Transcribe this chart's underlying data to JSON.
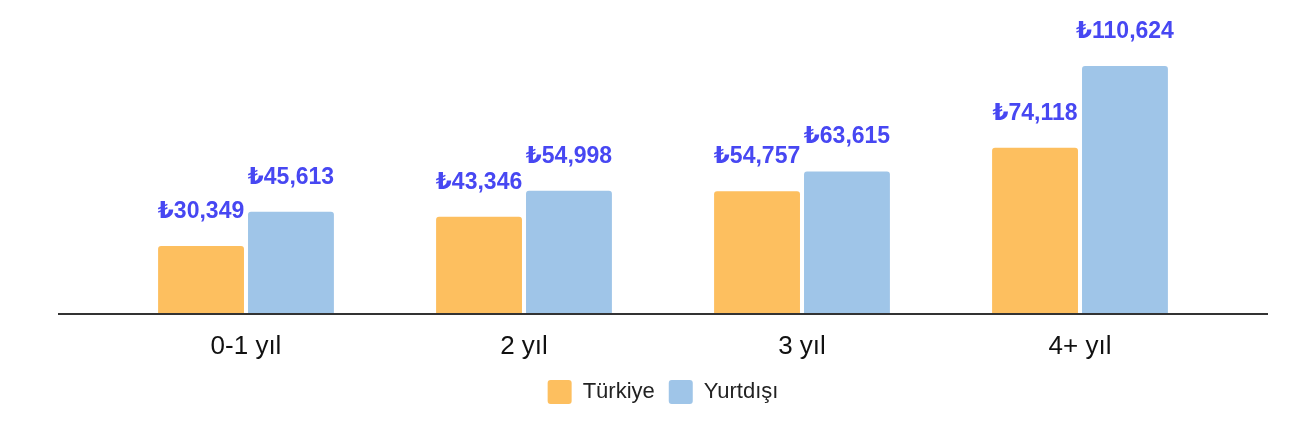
{
  "chart_data": {
    "type": "bar",
    "categories": [
      "0-1 yıl",
      "2 yıl",
      "3 yıl",
      "4+ yıl"
    ],
    "series": [
      {
        "name": "Türkiye",
        "color": "#fdbf5f",
        "values": [
          30349,
          43346,
          54757,
          74118
        ],
        "value_labels": [
          "₺30,349",
          "₺43,346",
          "₺54,757",
          "₺74,118"
        ]
      },
      {
        "name": "Yurtdışı",
        "color": "#9fc5e8",
        "values": [
          45613,
          54998,
          63615,
          110624
        ],
        "value_labels": [
          "₺45,613",
          "₺54,998",
          "₺63,615",
          "₺110,624"
        ]
      }
    ],
    "grid": false,
    "legend": "bottom",
    "tick_labels": "x"
  }
}
